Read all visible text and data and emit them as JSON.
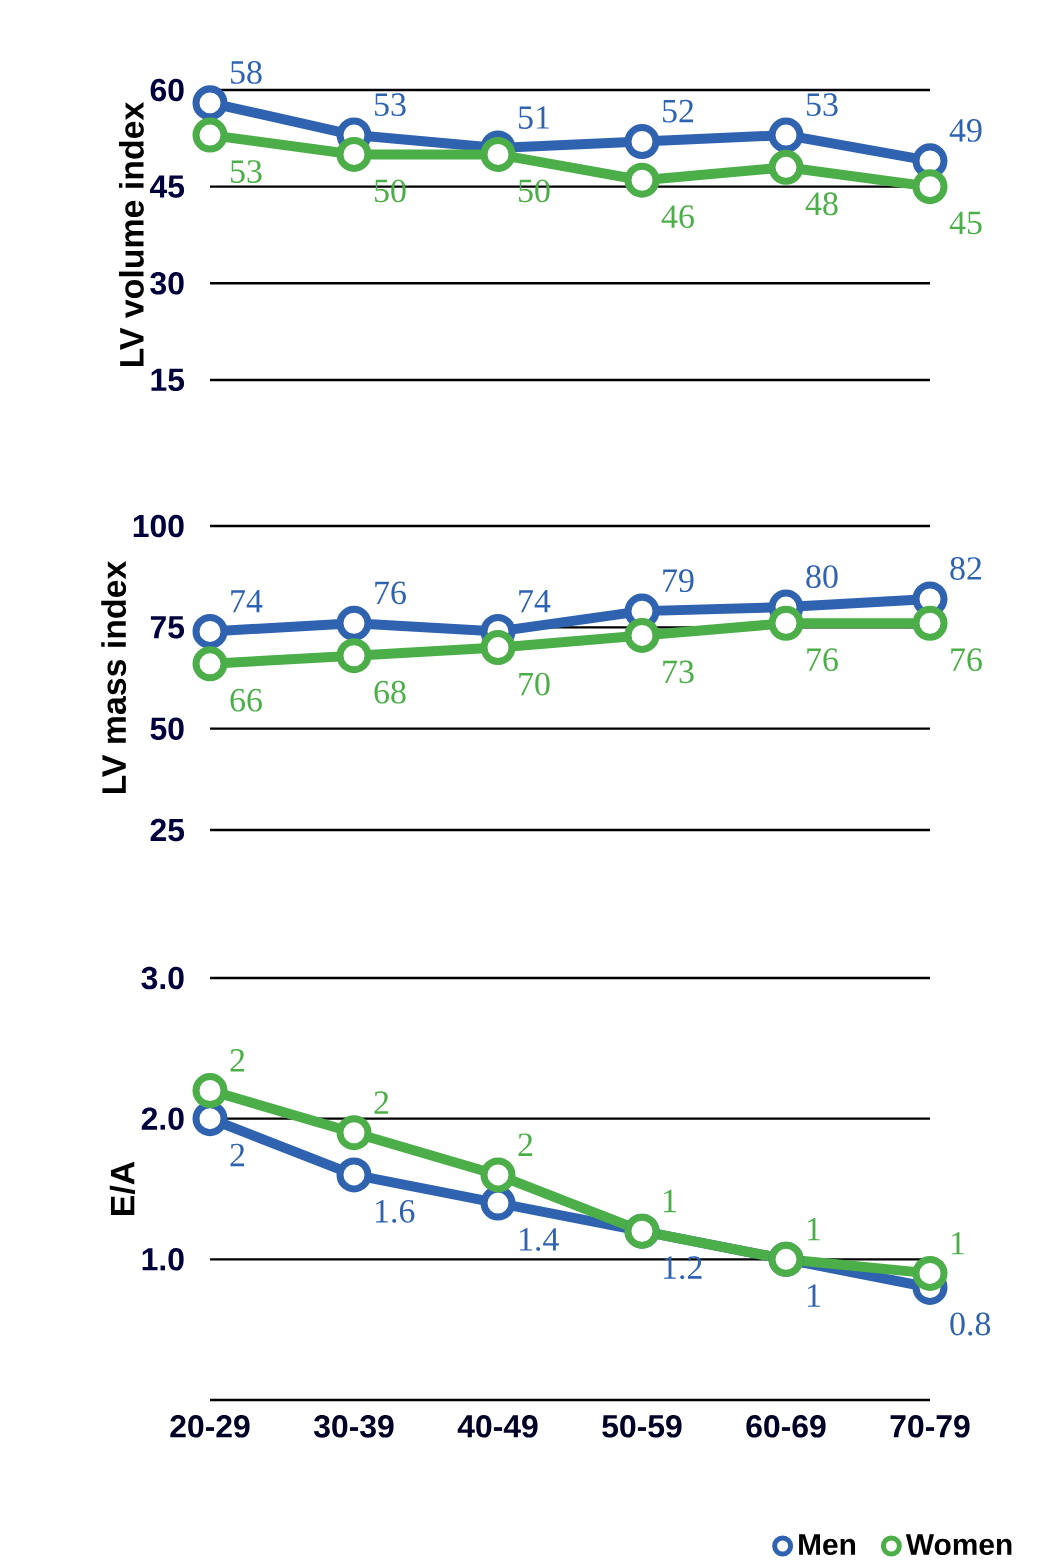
{
  "chart_data": [
    {
      "type": "line",
      "ylabel": "LV volume index",
      "categories": [
        null,
        null,
        null,
        null,
        null,
        null
      ],
      "series": [
        {
          "color": "#2f63b0",
          "values": [
            58,
            53,
            51,
            52,
            53,
            49
          ]
        },
        {
          "color": "#4cae48",
          "values": [
            53,
            50,
            50,
            46,
            48,
            45
          ]
        }
      ],
      "ylim": [
        15,
        60
      ],
      "yticks": [
        15,
        30,
        45,
        60
      ],
      "grid": "y",
      "tick_labels": "y",
      "marker": "circle",
      "data_labels": true
    },
    {
      "type": "line",
      "ylabel": "LV mass index",
      "categories": [
        null,
        null,
        null,
        null,
        null,
        null
      ],
      "series": [
        {
          "color": "#2f63b0",
          "values": [
            74,
            76,
            74,
            79,
            80,
            82
          ]
        },
        {
          "color": "#4cae48",
          "values": [
            66,
            68,
            70,
            73,
            76,
            76
          ]
        }
      ],
      "ylim": [
        25,
        100
      ],
      "yticks": [
        25,
        50,
        75,
        100
      ],
      "grid": "y",
      "tick_labels": "y",
      "marker": "circle",
      "data_labels": true
    },
    {
      "type": "line",
      "ylabel": "E/A",
      "categories": [
        "20-29",
        "30-39",
        "40-49",
        "50-59",
        "60-69",
        "70-79"
      ],
      "series": [
        {
          "name": "Men",
          "color": "#2f63b0",
          "values": [
            2.0,
            1.6,
            1.4,
            1.2,
            1.0,
            0.8
          ],
          "value_labels": [
            "2",
            "1.6",
            "1.4",
            "1.2",
            "1",
            "0.8"
          ]
        },
        {
          "name": "Women",
          "color": "#4cae48",
          "values": [
            2.2,
            1.9,
            1.6,
            1.2,
            1.0,
            0.9
          ],
          "value_labels": [
            "2",
            "2",
            "2",
            "1",
            "1",
            "1"
          ]
        }
      ],
      "ylim": [
        0,
        3
      ],
      "yticks": [
        {
          "value": 0,
          "label": null
        },
        {
          "value": 1,
          "label": "1.0"
        },
        {
          "value": 2,
          "label": "2.0"
        },
        {
          "value": 3,
          "label": "3.0"
        }
      ],
      "grid": "y",
      "marker": "circle",
      "legend": "bottom right"
    }
  ]
}
